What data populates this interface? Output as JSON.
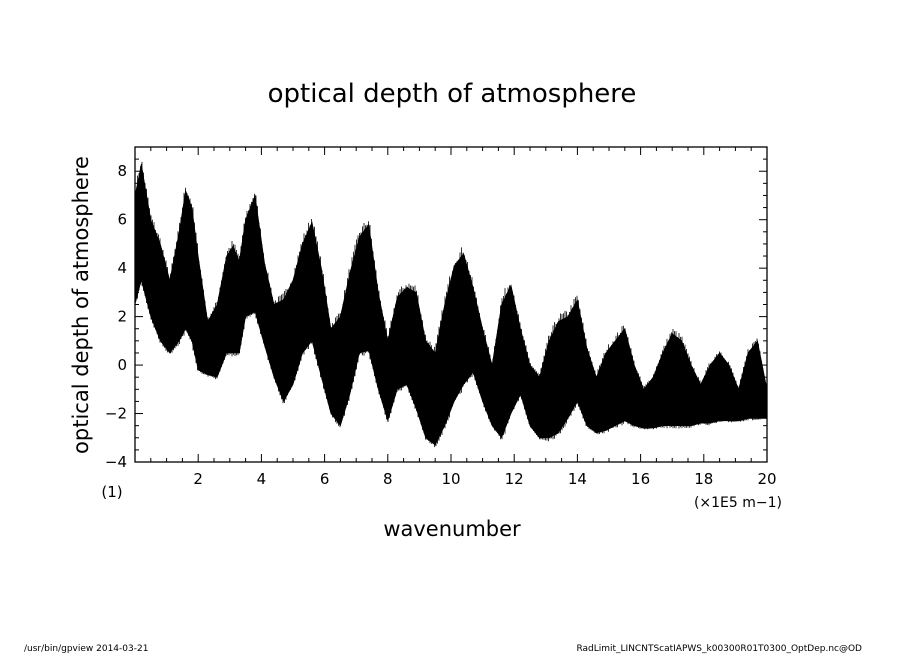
{
  "chart_data": {
    "type": "area",
    "title": "optical depth of atmosphere",
    "xlabel": "wavenumber",
    "ylabel": "optical depth of atmosphere",
    "x_scale_note": "(1)",
    "x_unit": "(×1E5 m−1)",
    "xlim": [
      0,
      20
    ],
    "ylim": [
      -4,
      9
    ],
    "x_ticks": [
      2,
      4,
      6,
      8,
      10,
      12,
      14,
      16,
      18,
      20
    ],
    "y_ticks": [
      -4,
      -2,
      0,
      2,
      4,
      6,
      8
    ],
    "x_tick_labels": [
      "2",
      "4",
      "6",
      "8",
      "10",
      "12",
      "14",
      "16",
      "18",
      "20"
    ],
    "y_tick_labels": [
      "−4",
      "−2",
      "0",
      "2",
      "4",
      "6",
      "8"
    ],
    "grid": false,
    "envelope": {
      "x": [
        0.0,
        0.2,
        0.5,
        0.8,
        1.1,
        1.4,
        1.6,
        1.8,
        2.0,
        2.3,
        2.6,
        2.9,
        3.1,
        3.3,
        3.5,
        3.8,
        4.1,
        4.4,
        4.7,
        5.0,
        5.3,
        5.6,
        5.9,
        6.2,
        6.5,
        6.8,
        7.1,
        7.4,
        7.7,
        8.0,
        8.3,
        8.6,
        8.9,
        9.2,
        9.5,
        9.8,
        10.1,
        10.4,
        10.7,
        11.0,
        11.3,
        11.6,
        11.9,
        12.2,
        12.5,
        12.8,
        13.1,
        13.4,
        13.7,
        14.0,
        14.3,
        14.6,
        14.9,
        15.2,
        15.5,
        15.8,
        16.1,
        16.4,
        16.7,
        17.0,
        17.3,
        17.6,
        17.9,
        18.2,
        18.5,
        18.8,
        19.1,
        19.4,
        19.7,
        20.0
      ],
      "upper": [
        7.0,
        8.3,
        6.0,
        5.0,
        3.5,
        5.5,
        7.2,
        6.5,
        4.5,
        1.8,
        2.5,
        4.5,
        4.9,
        4.3,
        6.0,
        7.0,
        4.2,
        2.5,
        2.7,
        3.5,
        5.0,
        5.9,
        4.0,
        1.5,
        2.0,
        3.8,
        5.3,
        5.8,
        3.0,
        1.0,
        2.8,
        3.2,
        3.0,
        1.0,
        0.5,
        2.5,
        4.1,
        4.6,
        3.2,
        1.5,
        0.0,
        2.5,
        3.3,
        1.5,
        0.0,
        -0.5,
        1.0,
        1.8,
        2.0,
        2.7,
        0.7,
        -0.5,
        0.5,
        1.0,
        1.5,
        0.0,
        -1.0,
        -0.5,
        0.5,
        1.3,
        1.0,
        0.0,
        -0.8,
        0.0,
        0.5,
        0.0,
        -1.0,
        0.5,
        1.0,
        -1.0
      ],
      "lower": [
        2.5,
        3.5,
        2.0,
        1.0,
        0.5,
        1.0,
        1.5,
        1.0,
        -0.2,
        -0.4,
        -0.5,
        0.5,
        0.5,
        0.5,
        2.0,
        2.2,
        0.8,
        -0.5,
        -1.5,
        -0.8,
        0.5,
        1.0,
        -0.5,
        -2.0,
        -2.5,
        -1.2,
        0.5,
        0.6,
        -1.0,
        -2.3,
        -1.0,
        -0.8,
        -1.8,
        -3.0,
        -3.3,
        -2.5,
        -1.5,
        -0.8,
        -0.3,
        -1.5,
        -2.5,
        -3.0,
        -2.0,
        -1.2,
        -2.5,
        -3.0,
        -3.0,
        -2.8,
        -2.2,
        -1.5,
        -2.5,
        -2.8,
        -2.7,
        -2.5,
        -2.3,
        -2.5,
        -2.6,
        -2.6,
        -2.5,
        -2.5,
        -2.5,
        -2.5,
        -2.4,
        -2.4,
        -2.3,
        -2.3,
        -2.3,
        -2.2,
        -2.2,
        -2.2
      ]
    }
  },
  "footer": {
    "left": "/usr/bin/gpview  2014-03-21",
    "right": "RadLimit_LINCNTScatIAPWS_k00300R01T0300_OptDep.nc@OD"
  }
}
